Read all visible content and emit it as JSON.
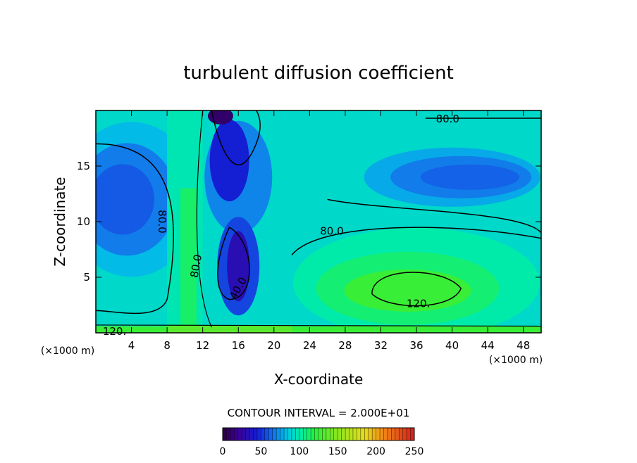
{
  "chart_data": {
    "type": "heatmap",
    "title": "turbulent diffusion coefficient",
    "xlabel": "X-coordinate",
    "ylabel": "Z-coordinate",
    "x_unit": "(×1000 m)",
    "z_unit": "(×1000 m)",
    "xlim": [
      0,
      50
    ],
    "ylim": [
      0,
      20
    ],
    "x_ticks": [
      4,
      8,
      12,
      16,
      20,
      24,
      28,
      32,
      36,
      40,
      44,
      48
    ],
    "y_ticks": [
      5,
      10,
      15
    ],
    "contour_interval_text": "CONTOUR INTERVAL = 2.000E+01",
    "contour_labels": [
      {
        "text": "80.0",
        "x": 39.5,
        "z": 19.2
      },
      {
        "text": "80.0",
        "x": 26.5,
        "z": 9.1
      },
      {
        "text": "80.0",
        "x": 7.4,
        "z": 10.0,
        "rotation": 90
      },
      {
        "text": "80.0",
        "x": 11.3,
        "z": 6.0,
        "rotation": -80
      },
      {
        "text": "40.0",
        "x": 16.0,
        "z": 4.0,
        "rotation": -60
      },
      {
        "text": "120.",
        "x": 36.2,
        "z": 2.6
      },
      {
        "text": "120.",
        "x": 2.1,
        "z": 0.1
      }
    ],
    "colorbar": {
      "min": 0,
      "max": 250,
      "tick_labels": [
        "0",
        "50",
        "100",
        "150",
        "200",
        "250"
      ]
    },
    "field_features": [
      {
        "desc": "left low pocket",
        "x": 4,
        "z": 12,
        "value": 60
      },
      {
        "desc": "central low core",
        "x": 16,
        "z": 6,
        "value": 30
      },
      {
        "desc": "upper minimum",
        "x": 14,
        "z": 19.5,
        "value": 10
      },
      {
        "desc": "right upper low",
        "x": 42,
        "z": 14,
        "value": 60
      },
      {
        "desc": "right lower high",
        "x": 36,
        "z": 3.8,
        "value": 125
      },
      {
        "desc": "near-surface high",
        "x": 10,
        "z": 0.3,
        "value": 130
      }
    ]
  }
}
